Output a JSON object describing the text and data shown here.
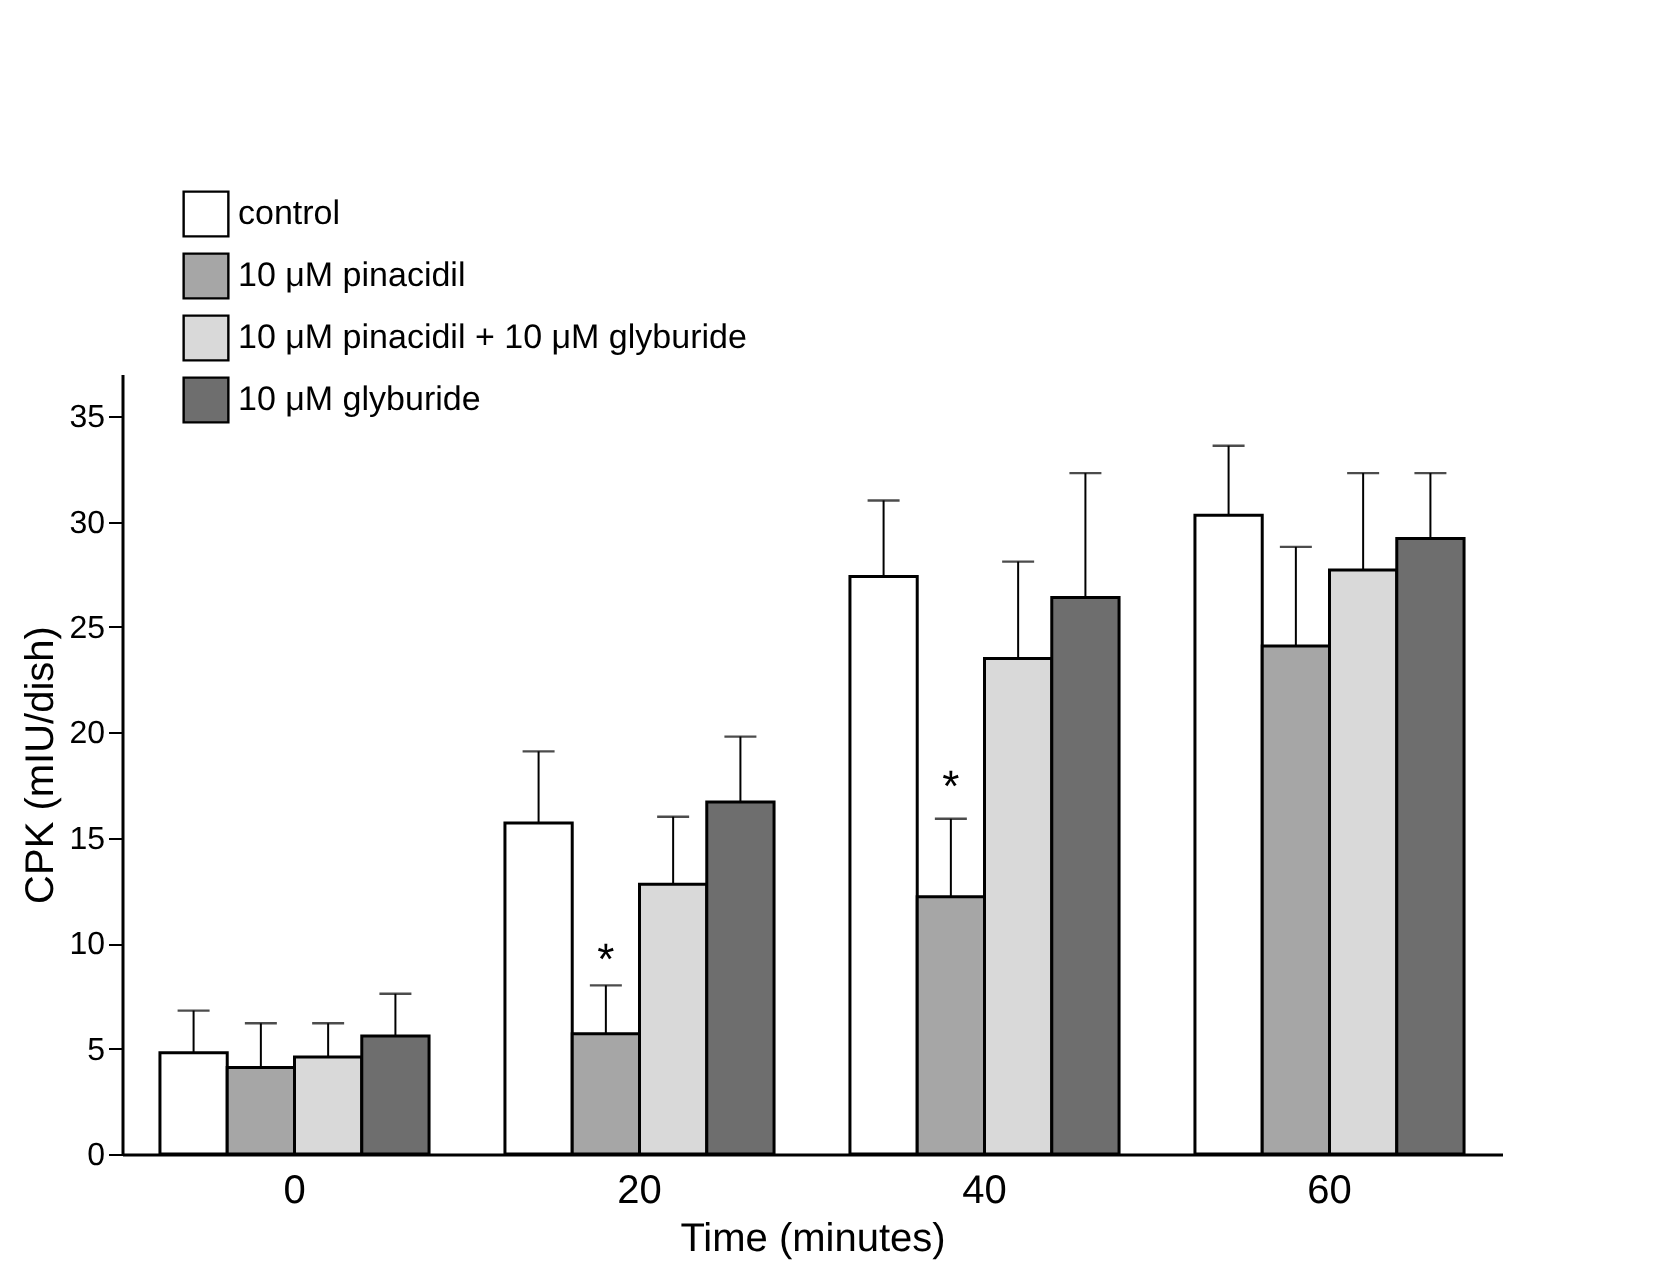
{
  "chart_data": {
    "type": "bar",
    "xlabel": "Time (minutes)",
    "ylabel": "CPK (mIU/dish)",
    "categories": [
      "0",
      "20",
      "40",
      "60"
    ],
    "series": [
      {
        "name": "control",
        "color": "#ffffff",
        "values": [
          4.8,
          15.7,
          27.4,
          30.3
        ],
        "errors": [
          [
            4.8,
            6.8
          ],
          [
            15.7,
            19.1
          ],
          [
            27.4,
            31.0
          ],
          [
            30.3,
            33.6
          ]
        ]
      },
      {
        "name": "10 μM pinacidil",
        "color": "#a6a6a6",
        "values": [
          4.1,
          5.7,
          12.2,
          24.1
        ],
        "errors": [
          [
            4.1,
            6.2
          ],
          [
            5.7,
            8.0
          ],
          [
            12.2,
            15.9
          ],
          [
            24.1,
            28.8
          ]
        ]
      },
      {
        "name": "10 μM pinacidil + 10 μM glyburide",
        "color": "#d9d9d9",
        "values": [
          4.6,
          12.8,
          23.5,
          27.7
        ],
        "errors": [
          [
            4.6,
            6.2
          ],
          [
            12.8,
            16.0
          ],
          [
            23.5,
            28.1
          ],
          [
            27.7,
            32.3
          ]
        ]
      },
      {
        "name": "10 μM glyburide",
        "color": "#6e6e6e",
        "values": [
          5.6,
          16.7,
          26.4,
          29.2
        ],
        "errors": [
          [
            5.6,
            7.6
          ],
          [
            16.7,
            19.8
          ],
          [
            26.4,
            32.3
          ],
          [
            29.2,
            32.3
          ]
        ]
      }
    ],
    "ylim": [
      0,
      37
    ],
    "yticks": [
      0,
      5,
      10,
      15,
      20,
      25,
      30,
      35
    ],
    "grid": false,
    "legend": "top left",
    "annotations": [
      {
        "text": "*",
        "x": "20",
        "y": 9.6
      },
      {
        "text": "*",
        "x": "40",
        "y": 17.8
      }
    ]
  }
}
